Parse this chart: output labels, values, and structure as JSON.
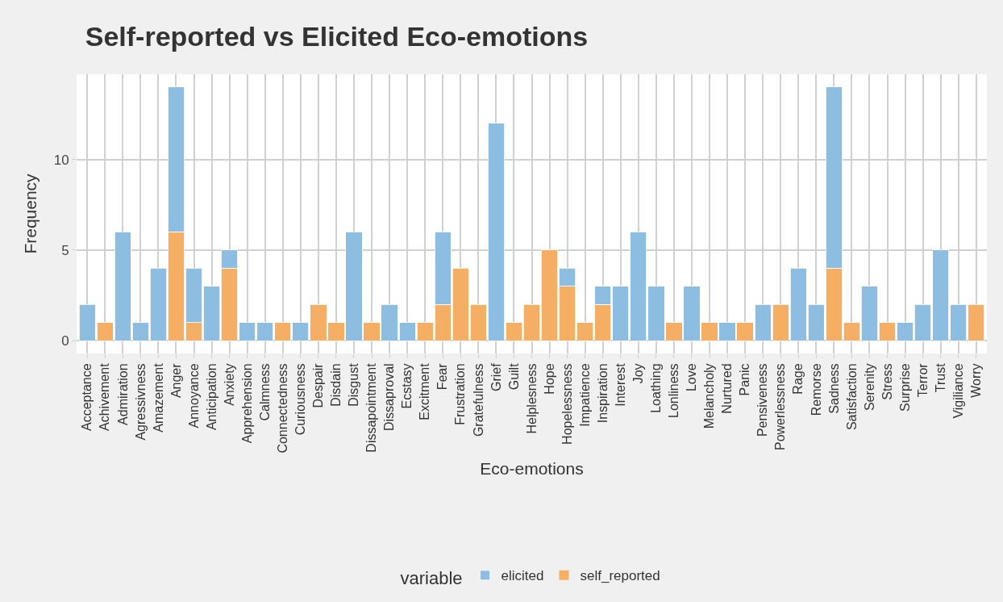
{
  "chart_data": {
    "type": "bar",
    "title": "Self-reported vs Elicited Eco-emotions",
    "xlabel": "Eco-emotions",
    "ylabel": "Frequency",
    "legend_title": "variable",
    "categories": [
      "Acceptance",
      "Achivement",
      "Admiration",
      "Agressivness",
      "Amazement",
      "Anger",
      "Annoyance",
      "Anticipation",
      "Anxiety",
      "Apprehension",
      "Calmness",
      "Connectedness",
      "Curiousness",
      "Despair",
      "Disdain",
      "Disgust",
      "Dissapointment",
      "Dissaproval",
      "Ecstasy",
      "Excitment",
      "Fear",
      "Frustration",
      "Gratefulness",
      "Grief",
      "Guilt",
      "Helplesness",
      "Hope",
      "Hopelessness",
      "Impatience",
      "Inspiration",
      "Interest",
      "Joy",
      "Loathing",
      "Lonliness",
      "Love",
      "Melancholy",
      "Nurtured",
      "Panic",
      "Pensiveness",
      "Powerlessness",
      "Rage",
      "Remorse",
      "Sadness",
      "Satisfaction",
      "Serenity",
      "Stress",
      "Surprise",
      "Terror",
      "Trust",
      "Vigiliance",
      "Worry"
    ],
    "series": [
      {
        "name": "self_reported",
        "color": "#f4af64",
        "values": [
          0,
          1,
          0,
          0,
          0,
          6,
          1,
          0,
          4,
          0,
          0,
          1,
          0,
          2,
          1,
          0,
          1,
          0,
          0,
          1,
          2,
          4,
          2,
          0,
          1,
          2,
          5,
          3,
          1,
          2,
          0,
          0,
          0,
          1,
          0,
          1,
          0,
          1,
          0,
          2,
          0,
          0,
          4,
          1,
          0,
          1,
          0,
          0,
          0,
          0,
          2
        ]
      },
      {
        "name": "elicited",
        "color": "#8dbee1",
        "values": [
          2,
          0,
          6,
          1,
          4,
          8,
          3,
          3,
          1,
          1,
          1,
          0,
          1,
          0,
          0,
          6,
          0,
          2,
          1,
          0,
          4,
          0,
          0,
          12,
          0,
          0,
          0,
          1,
          0,
          1,
          3,
          6,
          3,
          0,
          3,
          0,
          1,
          0,
          2,
          0,
          4,
          2,
          10,
          0,
          3,
          0,
          1,
          2,
          5,
          2,
          0
        ]
      }
    ],
    "stacked": true,
    "ylim": [
      -0.7,
      14.7
    ],
    "yticks": [
      0,
      5,
      10
    ],
    "grid": true,
    "legend": "bottom"
  }
}
